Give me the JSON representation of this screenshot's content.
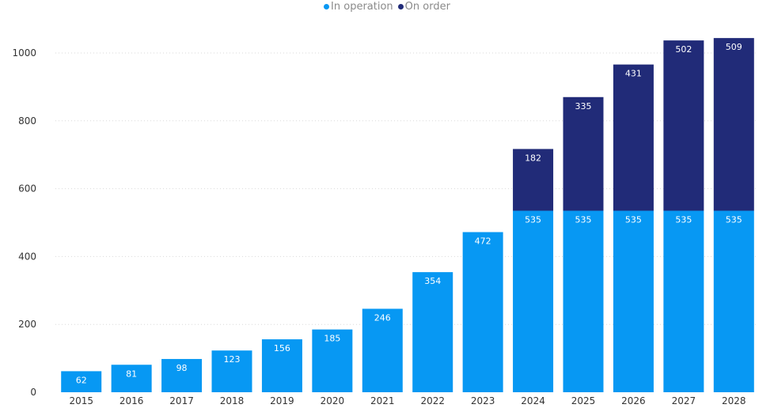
{
  "chart_data": {
    "type": "bar",
    "stacked": true,
    "categories": [
      "2015",
      "2016",
      "2017",
      "2018",
      "2019",
      "2020",
      "2021",
      "2022",
      "2023",
      "2024",
      "2025",
      "2026",
      "2027",
      "2028"
    ],
    "series": [
      {
        "name": "In operation",
        "color": "#0798f3",
        "values": [
          62,
          81,
          98,
          123,
          156,
          185,
          246,
          354,
          472,
          535,
          535,
          535,
          535,
          535
        ]
      },
      {
        "name": "On order",
        "color": "#212b78",
        "values": [
          0,
          0,
          0,
          0,
          0,
          0,
          0,
          0,
          0,
          182,
          335,
          431,
          502,
          509
        ]
      }
    ],
    "ylim": [
      0,
      1000
    ],
    "yticks": [
      0,
      200,
      400,
      600,
      800,
      1000
    ],
    "grid": true,
    "legend_position": "top-center",
    "title": "",
    "xlabel": "",
    "ylabel": ""
  }
}
